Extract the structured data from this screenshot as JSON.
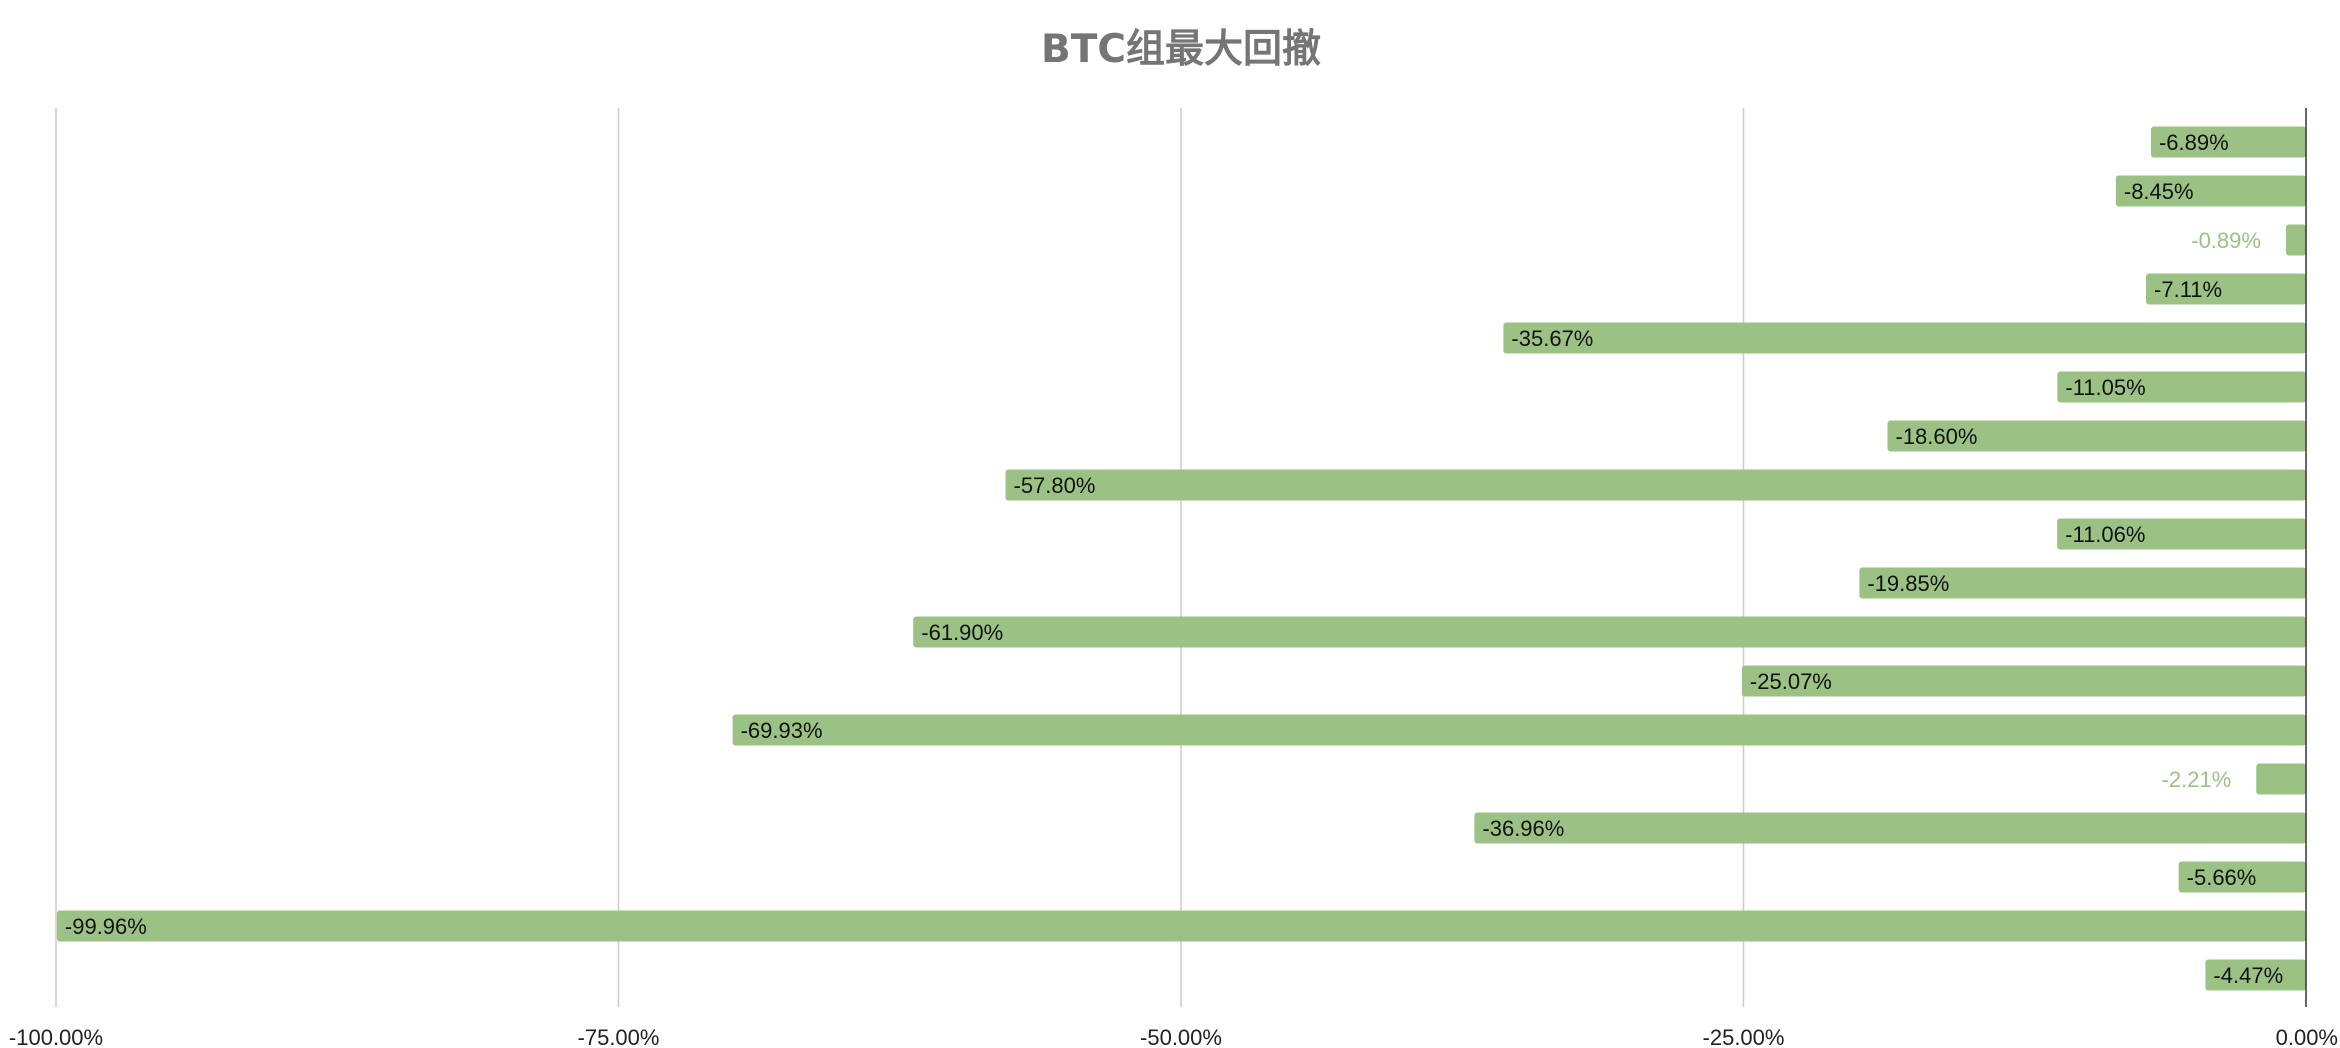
{
  "chart_data": {
    "type": "bar",
    "orientation": "horizontal",
    "title": "BTC组最大回撤",
    "xlim": [
      -100,
      0
    ],
    "x_ticks": [
      -100,
      -75,
      -50,
      -25,
      0
    ],
    "x_tick_labels": [
      "-100.00%",
      "-75.00%",
      "-50.00%",
      "-25.00%",
      "0.00%"
    ],
    "grid": true,
    "bar_color": "#9bc284",
    "values": [
      -6.89,
      -8.45,
      -0.89,
      -7.11,
      -35.67,
      -11.05,
      -18.6,
      -57.8,
      -11.06,
      -19.85,
      -61.9,
      -25.07,
      -69.93,
      -2.21,
      -36.96,
      -5.66,
      -99.96,
      -4.47
    ],
    "data_labels": [
      "-6.89%",
      "-8.45%",
      "-0.89%",
      "-7.11%",
      "-35.67%",
      "-11.05%",
      "-18.60%",
      "-57.80%",
      "-11.06%",
      "-19.85%",
      "-61.90%",
      "-25.07%",
      "-69.93%",
      "-2.21%",
      "-36.96%",
      "-5.66%",
      "-99.96%",
      "-4.47%"
    ]
  }
}
